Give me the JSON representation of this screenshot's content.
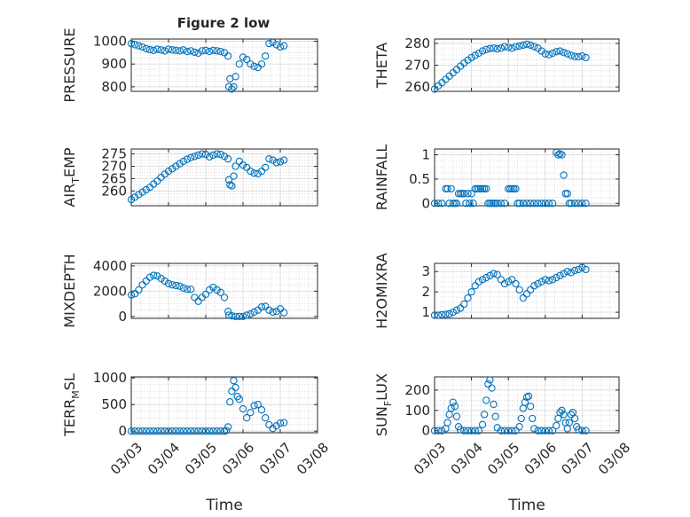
{
  "figure": {
    "title": "Figure 2 low",
    "marker_color": "#0072BD",
    "background": "#ffffff"
  },
  "chart_data": [
    {
      "type": "scatter",
      "ylabel": "PRESSURE",
      "xlabel": "",
      "xlim": [
        0,
        5
      ],
      "ylim": [
        780,
        1010
      ],
      "yticks": [
        800,
        900,
        1000
      ],
      "ytick_labels": [
        "800",
        "900",
        "1000"
      ],
      "xtick_labels": [],
      "grid": true,
      "minor_grid": true,
      "x": [
        0,
        0.1,
        0.2,
        0.3,
        0.4,
        0.5,
        0.6,
        0.7,
        0.8,
        0.9,
        1.0,
        1.1,
        1.2,
        1.3,
        1.4,
        1.5,
        1.6,
        1.7,
        1.8,
        1.9,
        2.0,
        2.1,
        2.2,
        2.3,
        2.4,
        2.5,
        2.6,
        2.62,
        2.65,
        2.7,
        2.75,
        2.8,
        2.9,
        3.0,
        3.1,
        3.2,
        3.3,
        3.4,
        3.5,
        3.6,
        3.7,
        3.8,
        3.9,
        4.0,
        4.1
      ],
      "y": [
        990,
        985,
        980,
        975,
        968,
        963,
        960,
        965,
        962,
        958,
        965,
        962,
        960,
        958,
        962,
        955,
        958,
        952,
        948,
        958,
        960,
        955,
        960,
        958,
        955,
        950,
        935,
        800,
        835,
        790,
        800,
        845,
        900,
        930,
        920,
        900,
        890,
        885,
        900,
        935,
        990,
        995,
        985,
        975,
        980
      ]
    },
    {
      "type": "scatter",
      "ylabel": "THETA",
      "xlabel": "",
      "xlim": [
        0,
        5
      ],
      "ylim": [
        258,
        282
      ],
      "yticks": [
        260,
        270,
        280
      ],
      "ytick_labels": [
        "260",
        "270",
        "280"
      ],
      "xtick_labels": [],
      "grid": true,
      "minor_grid": true,
      "x": [
        0,
        0.1,
        0.2,
        0.3,
        0.4,
        0.5,
        0.6,
        0.7,
        0.8,
        0.9,
        1.0,
        1.1,
        1.2,
        1.3,
        1.4,
        1.5,
        1.6,
        1.7,
        1.8,
        1.9,
        2.0,
        2.1,
        2.2,
        2.3,
        2.4,
        2.5,
        2.6,
        2.7,
        2.8,
        2.9,
        3.0,
        3.1,
        3.2,
        3.3,
        3.4,
        3.5,
        3.6,
        3.7,
        3.8,
        3.9,
        4.0,
        4.1
      ],
      "y": [
        259,
        260.5,
        262,
        263.5,
        265,
        266.5,
        268,
        269.5,
        271,
        272.3,
        273.5,
        274.5,
        275.5,
        276.5,
        277.2,
        277.6,
        277.8,
        277.5,
        277.8,
        278.5,
        278.2,
        277.8,
        278.5,
        278.8,
        279.2,
        279.6,
        279.2,
        278.5,
        277.8,
        276.5,
        275.2,
        274.8,
        275.5,
        276.2,
        276.5,
        275.8,
        275.2,
        274.5,
        274.0,
        273.8,
        274.2,
        273.5
      ]
    },
    {
      "type": "scatter",
      "ylabel": "AIR_TEMP",
      "xlabel": "",
      "xlim": [
        0,
        5
      ],
      "ylim": [
        254,
        277
      ],
      "yticks": [
        260,
        265,
        270,
        275
      ],
      "ytick_labels": [
        "260",
        "265",
        "270",
        "275"
      ],
      "xtick_labels": [],
      "grid": true,
      "minor_grid": true,
      "x": [
        0,
        0.1,
        0.2,
        0.3,
        0.4,
        0.5,
        0.6,
        0.7,
        0.8,
        0.9,
        1.0,
        1.1,
        1.2,
        1.3,
        1.4,
        1.5,
        1.6,
        1.7,
        1.8,
        1.9,
        2.0,
        2.1,
        2.2,
        2.3,
        2.4,
        2.5,
        2.6,
        2.62,
        2.65,
        2.7,
        2.75,
        2.8,
        2.9,
        3.0,
        3.1,
        3.2,
        3.3,
        3.4,
        3.5,
        3.6,
        3.7,
        3.8,
        3.9,
        4.0,
        4.1
      ],
      "y": [
        256.5,
        257.5,
        258.5,
        259.5,
        260.5,
        261.5,
        262.8,
        264,
        265.5,
        266.8,
        268,
        269,
        270,
        271,
        272,
        272.8,
        273.5,
        274,
        274.5,
        275,
        274.8,
        273.8,
        274.5,
        275,
        274.8,
        274,
        273,
        264.5,
        262.5,
        262,
        266,
        270,
        272,
        270.5,
        269.5,
        268,
        267.2,
        267,
        268,
        269.5,
        273,
        272.5,
        271.5,
        271.8,
        272.5
      ]
    },
    {
      "type": "scatter",
      "ylabel": "RAINFALL",
      "xlabel": "",
      "xlim": [
        0,
        5
      ],
      "ylim": [
        -0.05,
        1.12
      ],
      "yticks": [
        0,
        0.5,
        1
      ],
      "ytick_labels": [
        "0",
        "0.5",
        "1"
      ],
      "xtick_labels": [],
      "grid": true,
      "minor_grid": true,
      "x": [
        0,
        0.1,
        0.2,
        0.3,
        0.35,
        0.4,
        0.45,
        0.5,
        0.55,
        0.6,
        0.65,
        0.7,
        0.75,
        0.8,
        0.85,
        0.9,
        0.95,
        1.0,
        1.05,
        1.1,
        1.15,
        1.2,
        1.25,
        1.3,
        1.35,
        1.4,
        1.45,
        1.5,
        1.55,
        1.6,
        1.65,
        1.7,
        1.8,
        1.9,
        2.0,
        2.05,
        2.1,
        2.15,
        2.2,
        2.25,
        2.3,
        2.4,
        2.5,
        2.6,
        2.7,
        2.8,
        2.9,
        3.0,
        3.1,
        3.2,
        3.3,
        3.35,
        3.4,
        3.45,
        3.5,
        3.55,
        3.6,
        3.65,
        3.7,
        3.8,
        3.9,
        4.0,
        4.1
      ],
      "y": [
        0,
        0,
        0,
        0.3,
        0.3,
        0,
        0.3,
        0,
        0,
        0,
        0.2,
        0.2,
        0.2,
        0.2,
        0,
        0.2,
        0,
        0.2,
        0,
        0.3,
        0.3,
        0.3,
        0.3,
        0.3,
        0.3,
        0.3,
        0,
        0,
        0,
        0,
        0,
        0,
        0,
        0,
        0.3,
        0.3,
        0.3,
        0.3,
        0.3,
        0,
        0,
        0,
        0,
        0,
        0,
        0,
        0,
        0,
        0,
        0,
        1.05,
        1.0,
        1.02,
        1.0,
        0.58,
        0.2,
        0.2,
        0,
        0,
        0,
        0,
        0,
        0
      ]
    },
    {
      "type": "scatter",
      "ylabel": "MIXDEPTH",
      "xlabel": "",
      "xlim": [
        0,
        5
      ],
      "ylim": [
        -150,
        4200
      ],
      "yticks": [
        0,
        2000,
        4000
      ],
      "ytick_labels": [
        "0",
        "2000",
        "4000"
      ],
      "xtick_labels": [],
      "grid": true,
      "minor_grid": true,
      "x": [
        0,
        0.1,
        0.2,
        0.3,
        0.4,
        0.5,
        0.6,
        0.7,
        0.8,
        0.9,
        1.0,
        1.1,
        1.2,
        1.3,
        1.4,
        1.5,
        1.6,
        1.7,
        1.8,
        1.9,
        2.0,
        2.1,
        2.2,
        2.3,
        2.4,
        2.5,
        2.6,
        2.62,
        2.7,
        2.8,
        2.9,
        3.0,
        3.1,
        3.2,
        3.3,
        3.4,
        3.5,
        3.6,
        3.7,
        3.8,
        3.9,
        4.0,
        4.1
      ],
      "y": [
        1700,
        1800,
        2100,
        2500,
        2800,
        3100,
        3250,
        3200,
        3000,
        2800,
        2600,
        2500,
        2450,
        2400,
        2250,
        2150,
        2150,
        1500,
        1200,
        1500,
        1750,
        2100,
        2300,
        2100,
        1900,
        1500,
        400,
        100,
        50,
        0,
        0,
        0,
        100,
        200,
        350,
        500,
        750,
        800,
        500,
        350,
        400,
        600,
        300
      ]
    },
    {
      "type": "scatter",
      "ylabel": "H2OMIXRA",
      "xlabel": "",
      "xlim": [
        0,
        5
      ],
      "ylim": [
        0.7,
        3.4
      ],
      "yticks": [
        1,
        2,
        3
      ],
      "ytick_labels": [
        "1",
        "2",
        "3"
      ],
      "xtick_labels": [],
      "grid": true,
      "minor_grid": true,
      "x": [
        0,
        0.1,
        0.2,
        0.3,
        0.4,
        0.5,
        0.6,
        0.7,
        0.8,
        0.9,
        1.0,
        1.1,
        1.2,
        1.3,
        1.4,
        1.5,
        1.6,
        1.7,
        1.8,
        1.9,
        2.0,
        2.1,
        2.2,
        2.3,
        2.4,
        2.5,
        2.6,
        2.7,
        2.8,
        2.9,
        3.0,
        3.1,
        3.2,
        3.3,
        3.4,
        3.5,
        3.6,
        3.7,
        3.8,
        3.9,
        4.0,
        4.1
      ],
      "y": [
        0.85,
        0.85,
        0.88,
        0.9,
        0.92,
        1.0,
        1.1,
        1.2,
        1.4,
        1.7,
        2.0,
        2.3,
        2.5,
        2.6,
        2.7,
        2.8,
        2.9,
        2.85,
        2.6,
        2.4,
        2.5,
        2.6,
        2.4,
        2.1,
        1.7,
        1.9,
        2.1,
        2.3,
        2.4,
        2.5,
        2.6,
        2.55,
        2.6,
        2.7,
        2.8,
        2.9,
        3.0,
        2.95,
        3.05,
        3.1,
        3.2,
        3.1
      ]
    },
    {
      "type": "scatter",
      "ylabel": "TERR_MSL",
      "xlabel": "Time",
      "xlim": [
        0,
        5
      ],
      "ylim": [
        -30,
        1020
      ],
      "yticks": [
        0,
        500,
        1000
      ],
      "ytick_labels": [
        "0",
        "500",
        "1000"
      ],
      "xtick_labels": [
        "03/03",
        "03/04",
        "03/05",
        "03/06",
        "03/07",
        "03/08"
      ],
      "grid": true,
      "minor_grid": true,
      "x": [
        0,
        0.1,
        0.2,
        0.3,
        0.4,
        0.5,
        0.6,
        0.7,
        0.8,
        0.9,
        1.0,
        1.1,
        1.2,
        1.3,
        1.4,
        1.5,
        1.6,
        1.7,
        1.8,
        1.9,
        2.0,
        2.1,
        2.2,
        2.3,
        2.4,
        2.5,
        2.55,
        2.6,
        2.65,
        2.7,
        2.75,
        2.8,
        2.85,
        2.9,
        3.0,
        3.1,
        3.2,
        3.3,
        3.4,
        3.5,
        3.6,
        3.7,
        3.8,
        3.9,
        4.0,
        4.1
      ],
      "y": [
        0,
        0,
        0,
        0,
        0,
        0,
        0,
        0,
        0,
        0,
        0,
        0,
        0,
        0,
        0,
        0,
        0,
        0,
        0,
        0,
        0,
        0,
        0,
        0,
        0,
        0,
        10,
        80,
        550,
        750,
        950,
        820,
        650,
        600,
        420,
        250,
        350,
        480,
        500,
        400,
        250,
        120,
        50,
        100,
        150,
        160
      ]
    },
    {
      "type": "scatter",
      "ylabel": "SUN_FLUX",
      "xlabel": "Time",
      "xlim": [
        0,
        5
      ],
      "ylim": [
        -10,
        265
      ],
      "yticks": [
        0,
        100,
        200
      ],
      "ytick_labels": [
        "0",
        "100",
        "200"
      ],
      "xtick_labels": [
        "03/03",
        "03/04",
        "03/05",
        "03/06",
        "03/07",
        "03/08"
      ],
      "grid": true,
      "minor_grid": true,
      "x": [
        0,
        0.1,
        0.2,
        0.3,
        0.35,
        0.4,
        0.45,
        0.5,
        0.55,
        0.6,
        0.65,
        0.7,
        0.8,
        0.9,
        1.0,
        1.1,
        1.2,
        1.3,
        1.35,
        1.4,
        1.45,
        1.5,
        1.55,
        1.6,
        1.65,
        1.7,
        1.8,
        1.9,
        2.0,
        2.1,
        2.2,
        2.3,
        2.35,
        2.4,
        2.45,
        2.5,
        2.55,
        2.6,
        2.65,
        2.7,
        2.8,
        2.9,
        3.0,
        3.1,
        3.2,
        3.3,
        3.35,
        3.4,
        3.45,
        3.5,
        3.55,
        3.6,
        3.65,
        3.7,
        3.75,
        3.8,
        3.85,
        3.9,
        4.0,
        4.1
      ],
      "y": [
        0,
        0,
        0,
        10,
        40,
        80,
        110,
        140,
        120,
        70,
        20,
        5,
        0,
        0,
        0,
        0,
        0,
        30,
        80,
        150,
        230,
        250,
        210,
        130,
        70,
        15,
        0,
        0,
        0,
        0,
        0,
        20,
        60,
        110,
        140,
        165,
        170,
        120,
        60,
        10,
        0,
        0,
        0,
        0,
        0,
        25,
        60,
        90,
        100,
        80,
        40,
        10,
        40,
        80,
        90,
        60,
        20,
        5,
        0,
        0
      ]
    }
  ]
}
